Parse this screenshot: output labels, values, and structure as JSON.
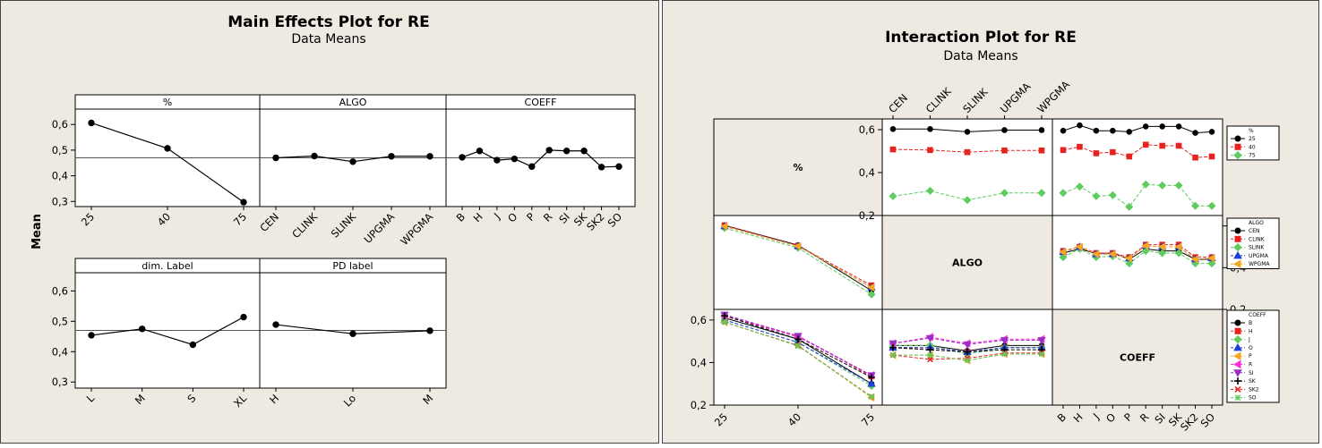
{
  "chart_data": [
    {
      "type": "line",
      "title": "Main Effects Plot for RE",
      "subtitle": "Data Means",
      "ylabel": "Mean",
      "ylim": [
        0.28,
        0.66
      ],
      "yticks": [
        "0,3",
        "0,4",
        "0,5",
        "0,6"
      ],
      "reference_line": 0.47,
      "panels": [
        {
          "label": "%",
          "categories": [
            "25",
            "40",
            "75"
          ],
          "values": [
            0.606,
            0.507,
            0.297
          ]
        },
        {
          "label": "ALGO",
          "categories": [
            "CEN",
            "CLINK",
            "SLINK",
            "UPGMA",
            "WPGMA"
          ],
          "values": [
            0.47,
            0.477,
            0.455,
            0.476,
            0.476
          ]
        },
        {
          "label": "COEFF",
          "categories": [
            "B",
            "H",
            "J",
            "O",
            "P",
            "R",
            "SI",
            "SK",
            "SK2",
            "SO"
          ],
          "values": [
            0.472,
            0.497,
            0.461,
            0.466,
            0.436,
            0.5,
            0.497,
            0.497,
            0.434,
            0.436
          ]
        },
        {
          "label": "dim. Label",
          "categories": [
            "L",
            "M",
            "S",
            "XL"
          ],
          "values": [
            0.454,
            0.475,
            0.423,
            0.514
          ]
        },
        {
          "label": "PD label",
          "categories": [
            "H",
            "Lo",
            "M"
          ],
          "values": [
            0.489,
            0.459,
            0.469
          ]
        }
      ]
    },
    {
      "type": "line",
      "title": "Interaction Plot for RE",
      "subtitle": "Data Means",
      "yticks": [
        "0,2",
        "0,4",
        "0,6"
      ],
      "ylim": [
        0.2,
        0.65
      ],
      "factors": [
        {
          "name": "%",
          "levels": [
            "25",
            "40",
            "75"
          ]
        },
        {
          "name": "ALGO",
          "levels": [
            "CEN",
            "CLINK",
            "SLINK",
            "UPGMA",
            "WPGMA"
          ]
        },
        {
          "name": "COEFF",
          "levels": [
            "B",
            "H",
            "J",
            "O",
            "P",
            "R",
            "SI",
            "SK",
            "SK2",
            "SO"
          ]
        }
      ],
      "legends": [
        {
          "title": "%",
          "items": [
            "25",
            "40",
            "75"
          ],
          "colors": [
            "#000000",
            "#e8231f",
            "#5ecc5e"
          ],
          "markers": [
            "circle",
            "square",
            "diamond"
          ]
        },
        {
          "title": "ALGO",
          "items": [
            "CEN",
            "CLINK",
            "SLINK",
            "UPGMA",
            "WPGMA"
          ],
          "colors": [
            "#000000",
            "#e8231f",
            "#5ecc5e",
            "#1f3fd8",
            "#f5a623"
          ],
          "markers": [
            "circle",
            "square",
            "diamond",
            "triangle",
            "triangle-left"
          ]
        },
        {
          "title": "COEFF",
          "items": [
            "B",
            "H",
            "J",
            "O",
            "P",
            "R",
            "SI",
            "SK",
            "SK2",
            "SO"
          ],
          "colors": [
            "#000000",
            "#e8231f",
            "#5ecc5e",
            "#1f3fd8",
            "#f5a623",
            "#ff2fd8",
            "#9b2fc9",
            "#000000",
            "#e8231f",
            "#5ecc5e"
          ],
          "markers": [
            "circle",
            "square",
            "diamond",
            "triangle",
            "triangle-left",
            "triangle-left",
            "triangle-down",
            "plus",
            "x",
            "star"
          ]
        }
      ],
      "cells": {
        "ALGO_by_pct": {
          "25": [
            0.603,
            0.603,
            0.59,
            0.598,
            0.598
          ],
          "40": [
            0.508,
            0.505,
            0.495,
            0.503,
            0.503
          ],
          "75": [
            0.29,
            0.315,
            0.272,
            0.305,
            0.305
          ]
        },
        "COEFF_by_pct": {
          "25": [
            0.595,
            0.62,
            0.595,
            0.595,
            0.59,
            0.615,
            0.615,
            0.615,
            0.585,
            0.59
          ],
          "40": [
            0.505,
            0.52,
            0.49,
            0.495,
            0.475,
            0.53,
            0.525,
            0.525,
            0.47,
            0.475
          ],
          "75": [
            0.305,
            0.335,
            0.29,
            0.295,
            0.24,
            0.345,
            0.34,
            0.34,
            0.245,
            0.245
          ]
        },
        "COEFF_by_ALGO": {
          "CEN": [
            0.47,
            0.49,
            0.468,
            0.47,
            0.44,
            0.49,
            0.48,
            0.48,
            0.44,
            0.44
          ],
          "CLINK": [
            0.48,
            0.5,
            0.47,
            0.47,
            0.45,
            0.51,
            0.51,
            0.51,
            0.45,
            0.45
          ],
          "SLINK": [
            0.45,
            0.49,
            0.45,
            0.455,
            0.42,
            0.48,
            0.47,
            0.47,
            0.42,
            0.42
          ],
          "UPGMA": [
            0.475,
            0.5,
            0.465,
            0.465,
            0.445,
            0.505,
            0.5,
            0.5,
            0.44,
            0.445
          ],
          "WPGMA": [
            0.475,
            0.5,
            0.465,
            0.465,
            0.445,
            0.505,
            0.5,
            0.5,
            0.44,
            0.445
          ]
        },
        "pct_by_ALGO": {
          "CEN": [
            0.603,
            0.508,
            0.29
          ],
          "CLINK": [
            0.603,
            0.505,
            0.315
          ],
          "SLINK": [
            0.59,
            0.495,
            0.272
          ],
          "UPGMA": [
            0.598,
            0.503,
            0.305
          ],
          "WPGMA": [
            0.598,
            0.503,
            0.305
          ]
        },
        "pct_by_COEFF": {
          "B": [
            0.61,
            0.51,
            0.3
          ],
          "H": [
            0.62,
            0.525,
            0.335
          ],
          "J": [
            0.6,
            0.495,
            0.29
          ],
          "O": [
            0.6,
            0.495,
            0.3
          ],
          "P": [
            0.59,
            0.48,
            0.235
          ],
          "R": [
            0.62,
            0.52,
            0.34
          ],
          "SI": [
            0.625,
            0.525,
            0.34
          ],
          "SK": [
            0.62,
            0.51,
            0.33
          ],
          "SK2": [
            0.59,
            0.48,
            0.24
          ],
          "SO": [
            0.59,
            0.478,
            0.24
          ]
        },
        "ALGO_by_COEFF": {
          "B": [
            0.48,
            0.48,
            0.455,
            0.48,
            0.48
          ],
          "H": [
            0.47,
            0.47,
            0.45,
            0.47,
            0.47
          ],
          "J": [
            0.48,
            0.48,
            0.44,
            0.47,
            0.47
          ],
          "O": [
            0.47,
            0.47,
            0.45,
            0.47,
            0.47
          ],
          "P": [
            0.435,
            0.435,
            0.41,
            0.44,
            0.44
          ],
          "R": [
            0.49,
            0.52,
            0.49,
            0.51,
            0.51
          ],
          "SI": [
            0.49,
            0.515,
            0.485,
            0.505,
            0.505
          ],
          "SK": [
            0.47,
            0.46,
            0.45,
            0.46,
            0.46
          ],
          "SK2": [
            0.435,
            0.415,
            0.42,
            0.445,
            0.445
          ],
          "SO": [
            0.435,
            0.435,
            0.41,
            0.44,
            0.44
          ]
        }
      }
    }
  ]
}
